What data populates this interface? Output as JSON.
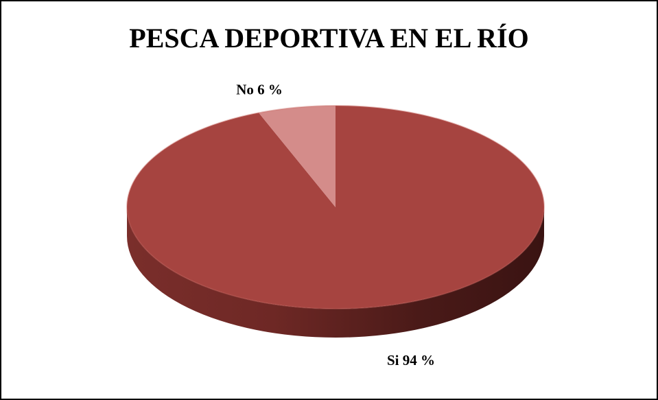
{
  "chart_data": {
    "type": "pie",
    "title": "PESCA DEPORTIVA EN EL RÍO",
    "slices": [
      {
        "label": "Si",
        "value": 94,
        "display": "Si 94 %",
        "color": "#a64440"
      },
      {
        "label": "No",
        "value": 6,
        "display": "No 6 %",
        "color": "#d48c8a"
      }
    ],
    "style": "3d"
  }
}
